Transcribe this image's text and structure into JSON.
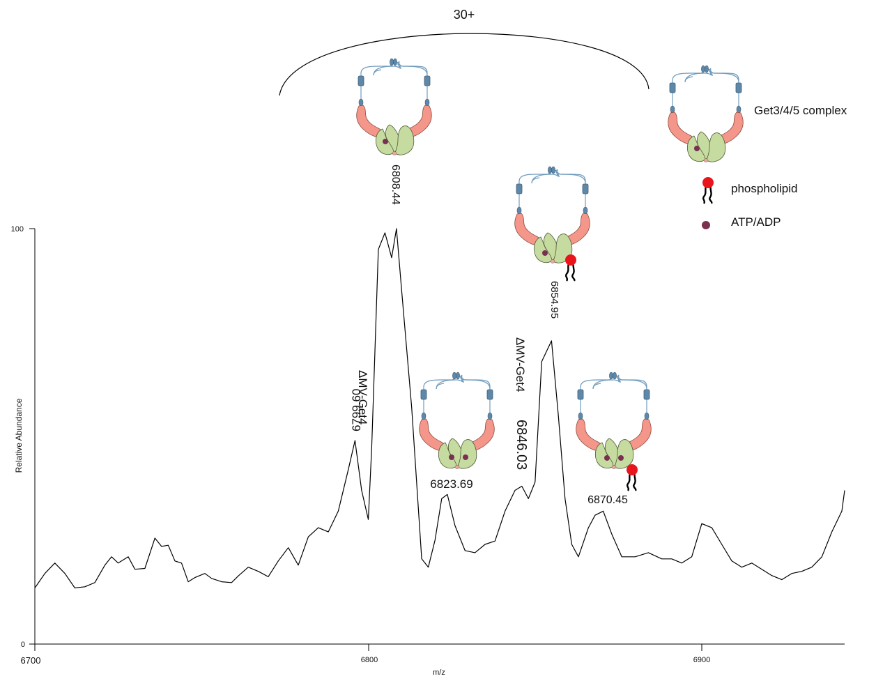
{
  "chart_data": {
    "type": "line",
    "xlabel": "m/z",
    "ylabel": "Relative Abundance",
    "xlim": [
      6700,
      6945
    ],
    "ylim": [
      0,
      100
    ],
    "x_ticks": [
      "6700",
      "6800",
      "6900"
    ],
    "y_ticks": [
      "0",
      "100"
    ],
    "charge_state": "30+",
    "series": [
      {
        "x": [
          6700,
          6703,
          6706,
          6709,
          6712,
          6715,
          6718,
          6721,
          6723,
          6725,
          6728,
          6730,
          6733,
          6736,
          6738,
          6740,
          6742,
          6744,
          6746,
          6748,
          6751,
          6753,
          6756,
          6759,
          6761,
          6764,
          6767,
          6770,
          6773,
          6776,
          6779,
          6782,
          6785,
          6788,
          6791,
          6794,
          6796,
          6798,
          6800,
          6801,
          6803,
          6805,
          6807,
          6808.44,
          6810,
          6813,
          6816,
          6818,
          6820,
          6822,
          6823.69,
          6826,
          6829,
          6832,
          6835,
          6838,
          6841,
          6844,
          6846.03,
          6848,
          6850,
          6852,
          6854.95,
          6857,
          6859,
          6861,
          6863,
          6866,
          6868,
          6870.45,
          6873,
          6876,
          6880,
          6884,
          6888,
          6891,
          6894,
          6897,
          6900,
          6903,
          6906,
          6909,
          6912,
          6915,
          6918,
          6921,
          6924,
          6927,
          6930,
          6933,
          6936,
          6939,
          6942,
          6945
        ],
        "y": [
          13.5,
          17,
          19.5,
          17,
          13.5,
          13.8,
          14.8,
          19,
          21,
          19.5,
          21,
          18,
          18.2,
          25.5,
          23.5,
          23.8,
          20,
          19.5,
          15,
          16,
          17,
          15.8,
          15,
          14.8,
          16.4,
          18.5,
          17.5,
          16.2,
          20,
          23.2,
          19,
          25.8,
          28,
          27,
          32,
          42,
          49,
          37,
          30,
          47,
          95,
          99,
          93,
          100,
          85,
          57,
          20.5,
          18.5,
          25,
          35,
          36,
          28.5,
          22.5,
          22,
          24,
          24.8,
          32,
          37,
          38,
          35,
          39,
          68,
          73,
          55,
          35,
          24,
          21,
          28,
          31,
          32,
          26.5,
          21,
          21,
          22,
          20.5,
          20.5,
          19.5,
          21,
          29,
          28,
          24,
          20,
          18.5,
          19.5,
          18,
          16.5,
          15.5,
          17,
          17.5,
          18.5,
          21,
          27,
          32,
          37
        ]
      }
    ],
    "peaks": [
      {
        "label": "6799.60",
        "x": 6799.6,
        "y": 49,
        "note": "ΔMV-Get4"
      },
      {
        "label": "6808.44",
        "x": 6808.44,
        "y": 100,
        "note": ""
      },
      {
        "label": "6823.69",
        "x": 6823.69,
        "y": 36,
        "note": ""
      },
      {
        "label": "6846.03",
        "x": 6846.03,
        "y": 38,
        "note": "ΔMV-Get4"
      },
      {
        "label": "6854.95",
        "x": 6854.95,
        "y": 73,
        "note": ""
      },
      {
        "label": "6870.45",
        "x": 6870.45,
        "y": 32,
        "note": ""
      }
    ],
    "legend": [
      {
        "label": "Get3/4/5 complex",
        "icon": "complex-icon"
      },
      {
        "label": "phospholipid",
        "icon": "phospholipid-icon",
        "color": "#e8151d"
      },
      {
        "label": "ATP/ADP",
        "icon": "nucleotide-icon",
        "color": "#7a3050"
      }
    ],
    "colors": {
      "line": "#000000",
      "get3": "#c6dba0",
      "get4": "#f4968a",
      "tm": "#5f88a8",
      "nucleotide": "#7a3050",
      "lipid": "#e8151d"
    }
  }
}
